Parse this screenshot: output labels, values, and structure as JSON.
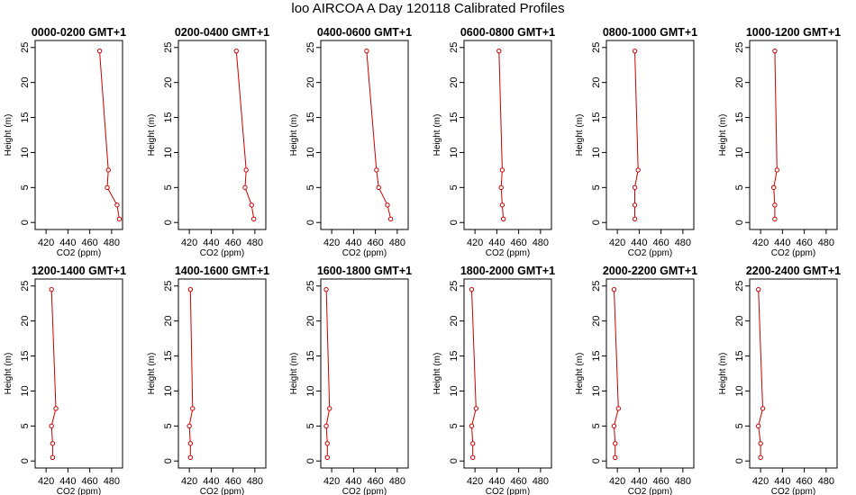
{
  "title": "loo AIRCOA A  Day 120118  Calibrated Profiles",
  "chart_data": {
    "type": "line",
    "xlabel": "CO2 (ppm)",
    "ylabel": "Height (m)",
    "xlim": [
      410,
      490
    ],
    "ylim": [
      -1,
      26
    ],
    "xticks": [
      420,
      440,
      460,
      480
    ],
    "yticks": [
      0,
      5,
      10,
      15,
      20,
      25
    ],
    "line_color": "#cc0000",
    "heights": [
      0.5,
      2.5,
      5,
      7.5,
      24.5
    ],
    "panels": [
      {
        "title": "0000-0200 GMT+1",
        "x": [
          487,
          485,
          476,
          477,
          469
        ]
      },
      {
        "title": "0200-0400 GMT+1",
        "x": [
          479,
          477,
          471,
          472,
          463
        ]
      },
      {
        "title": "0400-0600 GMT+1",
        "x": [
          474,
          471,
          463,
          461,
          452
        ]
      },
      {
        "title": "0600-0800 GMT+1",
        "x": [
          446,
          445,
          444,
          445,
          442
        ]
      },
      {
        "title": "0800-1000 GMT+1",
        "x": [
          436,
          436,
          436,
          439,
          436
        ]
      },
      {
        "title": "1000-1200 GMT+1",
        "x": [
          433,
          433,
          432,
          435,
          433
        ]
      },
      {
        "title": "1200-1400 GMT+1",
        "x": [
          426,
          426,
          425,
          429,
          425
        ]
      },
      {
        "title": "1400-1600 GMT+1",
        "x": [
          421,
          421,
          420,
          423,
          421
        ]
      },
      {
        "title": "1600-1800 GMT+1",
        "x": [
          416,
          416,
          415,
          418,
          415
        ]
      },
      {
        "title": "1800-2000 GMT+1",
        "x": [
          418,
          418,
          417,
          421,
          417
        ]
      },
      {
        "title": "2000-2200 GMT+1",
        "x": [
          418,
          418,
          417,
          421,
          417
        ]
      },
      {
        "title": "2200-2400 GMT+1",
        "x": [
          420,
          420,
          418,
          422,
          418
        ]
      }
    ]
  }
}
